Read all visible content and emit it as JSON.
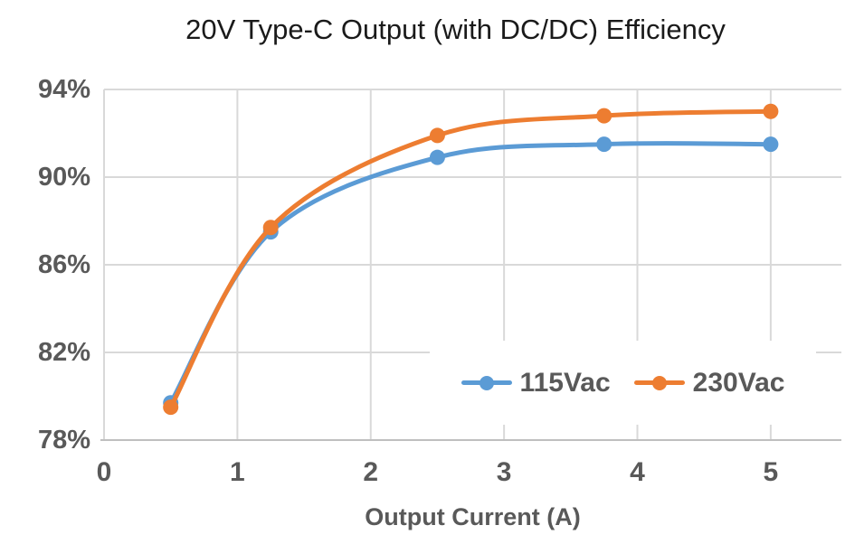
{
  "page": {
    "background": "#ffffff"
  },
  "chart_data": {
    "type": "line",
    "title": "20V Type-C Output (with DC/DC) Efficiency",
    "xlabel": "Output Current (A)",
    "ylabel": "",
    "x": [
      0.5,
      1.25,
      2.5,
      3.75,
      5
    ],
    "series": [
      {
        "name": "115Vac",
        "color": "#5B9BD5",
        "values": [
          79.7,
          87.5,
          90.9,
          91.5,
          91.5
        ]
      },
      {
        "name": "230Vac",
        "color": "#ED7D31",
        "values": [
          79.5,
          87.7,
          91.9,
          92.8,
          93.0
        ]
      }
    ],
    "x_ticks": {
      "values": [
        0,
        1,
        2,
        3,
        4,
        5
      ],
      "labels": [
        "0",
        "1",
        "2",
        "3",
        "4",
        "5"
      ]
    },
    "y_ticks": {
      "values": [
        78,
        82,
        86,
        90,
        94
      ],
      "labels": [
        "78%",
        "82%",
        "86%",
        "90%",
        "94%"
      ]
    },
    "xlim": [
      0,
      5.53
    ],
    "ylim": [
      78,
      94
    ],
    "grid": true,
    "smooth_lines": true,
    "marker": "circle",
    "legend_position": "inside-bottom-right",
    "colors": {
      "gridline": "#D9D9D9",
      "axis_line": "#BFBFBF",
      "text": "#595959",
      "title": "#1a1a1a",
      "background": "#ffffff"
    }
  }
}
